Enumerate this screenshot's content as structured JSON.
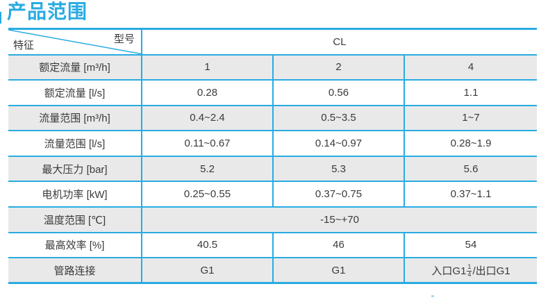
{
  "page": {
    "title": "产品范围"
  },
  "colors": {
    "accent": "#29ABE2",
    "row_alt": "#E9E9EA",
    "text": "#3A3A3A"
  },
  "table": {
    "corner": {
      "model": "型号",
      "feature": "特征"
    },
    "model_header": "CL",
    "rows": [
      {
        "label": "额定流量 [m³/h]",
        "values": [
          "1",
          "2",
          "4"
        ]
      },
      {
        "label": "额定流量 [l/s]",
        "values": [
          "0.28",
          "0.56",
          "1.1"
        ]
      },
      {
        "label": "流量范围 [m³/h]",
        "values": [
          "0.4~2.4",
          "0.5~3.5",
          "1~7"
        ]
      },
      {
        "label": "流量范围 [l/s]",
        "values": [
          "0.11~0.67",
          "0.14~0.97",
          "0.28~1.9"
        ]
      },
      {
        "label": "最大压力 [bar]",
        "values": [
          "5.2",
          "5.3",
          "5.6"
        ]
      },
      {
        "label": "电机功率 [kW]",
        "values": [
          "0.25~0.55",
          "0.37~0.75",
          "0.37~1.1"
        ]
      },
      {
        "label": "温度范围 [℃]",
        "values": [
          "-15~+70"
        ]
      },
      {
        "label": "最高效率 [%]",
        "values": [
          "40.5",
          "46",
          "54"
        ]
      },
      {
        "label": "管路连接",
        "values": [
          "G1",
          "G1",
          "入口G1¼/出口G1"
        ]
      }
    ]
  }
}
